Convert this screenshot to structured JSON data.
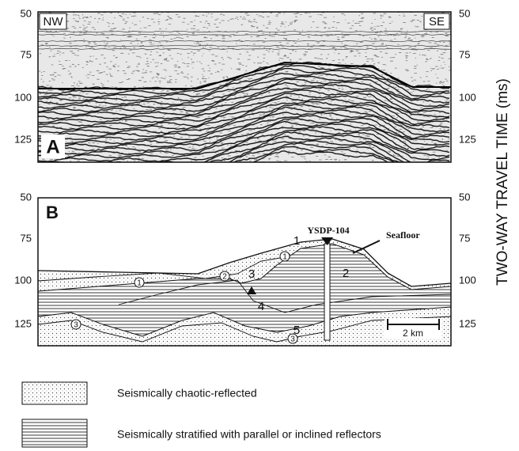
{
  "panel_a": {
    "label": "A",
    "left_tag": "NW",
    "right_tag": "SE",
    "left_ticks": [
      50,
      75,
      100,
      125
    ],
    "right_ticks": [
      50,
      75,
      100,
      125
    ]
  },
  "panel_b": {
    "label": "B",
    "left_ticks": [
      50,
      75,
      100,
      125
    ],
    "right_ticks": [
      50,
      75,
      100,
      125
    ],
    "borehole": "YSDP-104",
    "seafloor": "Seafloor",
    "units": [
      "1",
      "2",
      "3",
      "4",
      "5"
    ],
    "circled": [
      "1",
      "1",
      "2",
      "3",
      "3"
    ],
    "scale": "2 km"
  },
  "axis_label": "TWO-WAY TRAVEL TIME (ms)",
  "legend": [
    {
      "label": "Seismically chaotic-reflected"
    },
    {
      "label": "Seismically stratified with parallel or inclined reflectors"
    }
  ]
}
